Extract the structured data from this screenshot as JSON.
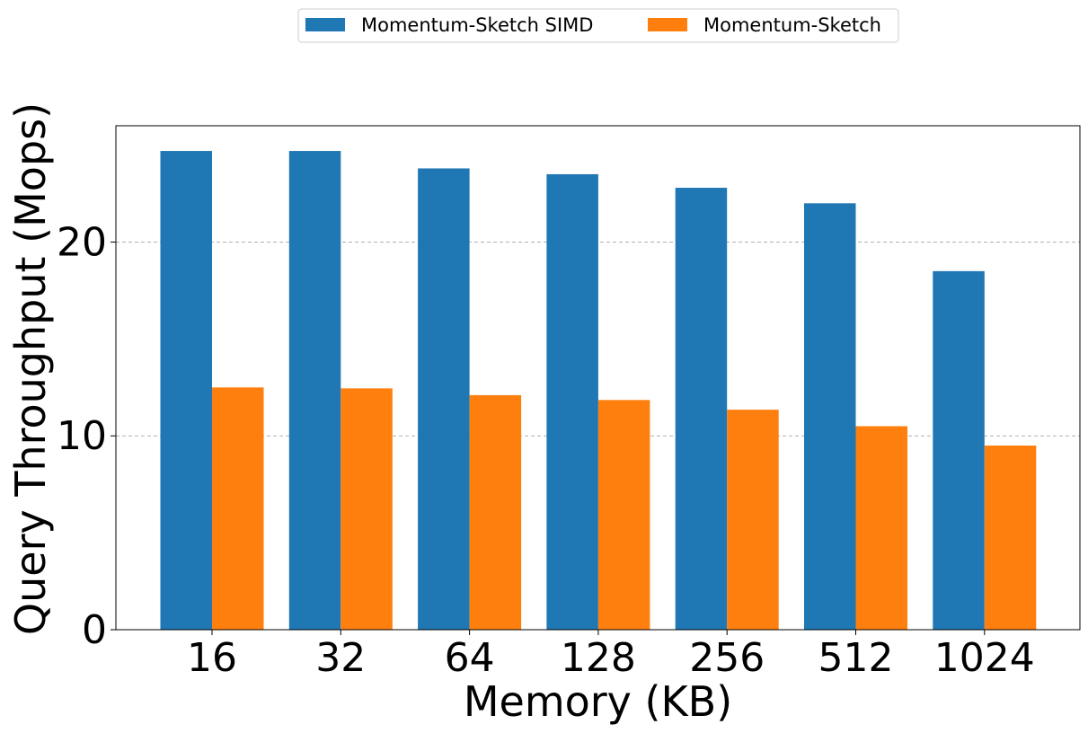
{
  "chart_data": {
    "type": "bar",
    "title": "",
    "xlabel": "Memory (KB)",
    "ylabel": "Query Throughput (Mops)",
    "categories": [
      "16",
      "32",
      "64",
      "128",
      "256",
      "512",
      "1024"
    ],
    "series": [
      {
        "name": "Momentum-Sketch SIMD",
        "color": "#1f77b4",
        "values": [
          24.7,
          24.7,
          23.8,
          23.5,
          22.8,
          22.0,
          18.5
        ]
      },
      {
        "name": "Momentum-Sketch",
        "color": "#ff7f0e",
        "values": [
          12.5,
          12.45,
          12.1,
          11.85,
          11.35,
          10.5,
          9.5
        ]
      }
    ],
    "ylim": [
      0,
      26
    ],
    "yticks": [
      0,
      10,
      20
    ],
    "grid": "y-dashed",
    "legend_position": "top-center"
  }
}
